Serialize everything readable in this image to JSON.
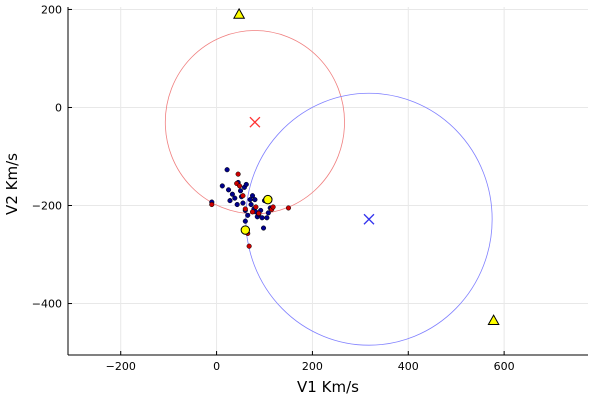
{
  "chart_data": {
    "type": "scatter",
    "xlabel": "V1 Km/s",
    "ylabel": "V2 Km/s",
    "xlim": [
      -310,
      775
    ],
    "ylim": [
      -505,
      205
    ],
    "xticks": [
      -200,
      0,
      200,
      400,
      600
    ],
    "yticks": [
      200,
      0,
      -200,
      -400
    ],
    "xtick_labels": [
      "−200",
      "0",
      "200",
      "400",
      "600"
    ],
    "ytick_labels": [
      "200",
      "0",
      "−200",
      "−400"
    ],
    "grid": true,
    "legend": "none",
    "circles": [
      {
        "cx": 80,
        "cy": -30,
        "r": 187,
        "color": "#f08080"
      },
      {
        "cx": 318,
        "cy": -228,
        "r": 257,
        "color": "#8080ff"
      }
    ],
    "crosses": [
      {
        "x": 80,
        "y": -30,
        "color": "#ff3333"
      },
      {
        "x": 318,
        "y": -228,
        "color": "#3333ee"
      }
    ],
    "series": [
      {
        "marker": "dot",
        "color": "#00008b",
        "points": [
          [
            -10,
            -193
          ],
          [
            12,
            -160
          ],
          [
            22,
            -127
          ],
          [
            25,
            -168
          ],
          [
            28,
            -190
          ],
          [
            33,
            -177
          ],
          [
            38,
            -185
          ],
          [
            43,
            -198
          ],
          [
            45,
            -153
          ],
          [
            50,
            -170
          ],
          [
            52,
            -182
          ],
          [
            55,
            -195
          ],
          [
            58,
            -163
          ],
          [
            60,
            -210
          ],
          [
            62,
            -157
          ],
          [
            65,
            -220
          ],
          [
            70,
            -188
          ],
          [
            72,
            -198
          ],
          [
            75,
            -180
          ],
          [
            78,
            -207
          ],
          [
            80,
            -188
          ],
          [
            82,
            -213
          ],
          [
            85,
            -223
          ],
          [
            88,
            -218
          ],
          [
            92,
            -210
          ],
          [
            95,
            -225
          ],
          [
            98,
            -246
          ],
          [
            100,
            -190
          ],
          [
            105,
            -225
          ],
          [
            108,
            -215
          ],
          [
            112,
            -205
          ],
          [
            60,
            -232
          ]
        ]
      },
      {
        "marker": "dot",
        "color": "#cc0000",
        "points": [
          [
            -10,
            -198
          ],
          [
            42,
            -155
          ],
          [
            45,
            -136
          ],
          [
            48,
            -160
          ],
          [
            55,
            -180
          ],
          [
            60,
            -207
          ],
          [
            65,
            -257
          ],
          [
            68,
            -283
          ],
          [
            75,
            -213
          ],
          [
            82,
            -203
          ],
          [
            88,
            -216
          ],
          [
            115,
            -208
          ],
          [
            118,
            -203
          ],
          [
            150,
            -205
          ]
        ]
      },
      {
        "marker": "circle",
        "color": "#ffff00",
        "points": [
          [
            60,
            -250
          ],
          [
            107,
            -188
          ]
        ]
      },
      {
        "marker": "triangle",
        "color": "#ffff00",
        "points": [
          [
            47,
            190
          ],
          [
            578,
            -435
          ]
        ]
      }
    ]
  }
}
